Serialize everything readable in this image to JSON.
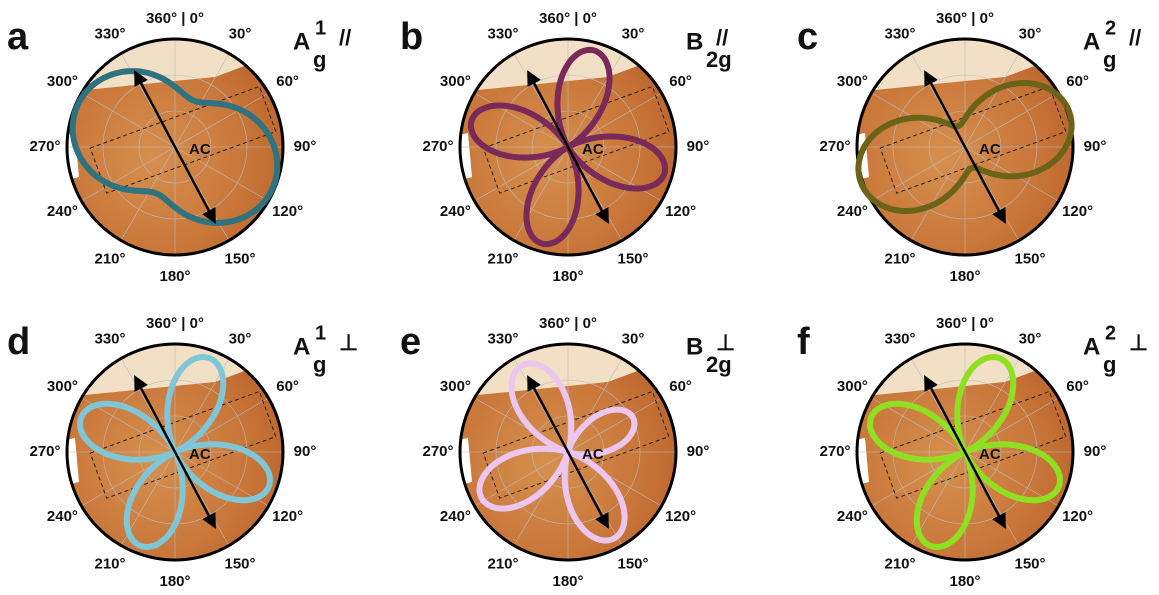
{
  "angle_labels": [
    "360° | 0°",
    "30°",
    "60°",
    "90°",
    "120°",
    "150°",
    "180°",
    "210°",
    "240°",
    "270°",
    "300°",
    "330°"
  ],
  "axis_label": "AC",
  "panels": [
    {
      "letter": "a",
      "mode": {
        "main": "A",
        "sup": "1",
        "sub": "g",
        "polarization": "//"
      },
      "color": "#2f7380"
    },
    {
      "letter": "b",
      "mode": {
        "main": "B",
        "sub": "2g",
        "polarization": "//"
      },
      "color": "#7a2a58"
    },
    {
      "letter": "c",
      "mode": {
        "main": "A",
        "sup": "2",
        "sub": "g",
        "polarization": "//"
      },
      "color": "#6b6418"
    },
    {
      "letter": "d",
      "mode": {
        "main": "A",
        "sup": "1",
        "sub": "g",
        "polarization": "⊥"
      },
      "color": "#7fc6d6"
    },
    {
      "letter": "e",
      "mode": {
        "main": "B",
        "sub": "2g",
        "polarization": "⊥"
      },
      "color": "#ecc6ee"
    },
    {
      "letter": "f",
      "mode": {
        "main": "A",
        "sup": "2",
        "sub": "g",
        "polarization": "⊥"
      },
      "color": "#8fe022"
    }
  ]
}
